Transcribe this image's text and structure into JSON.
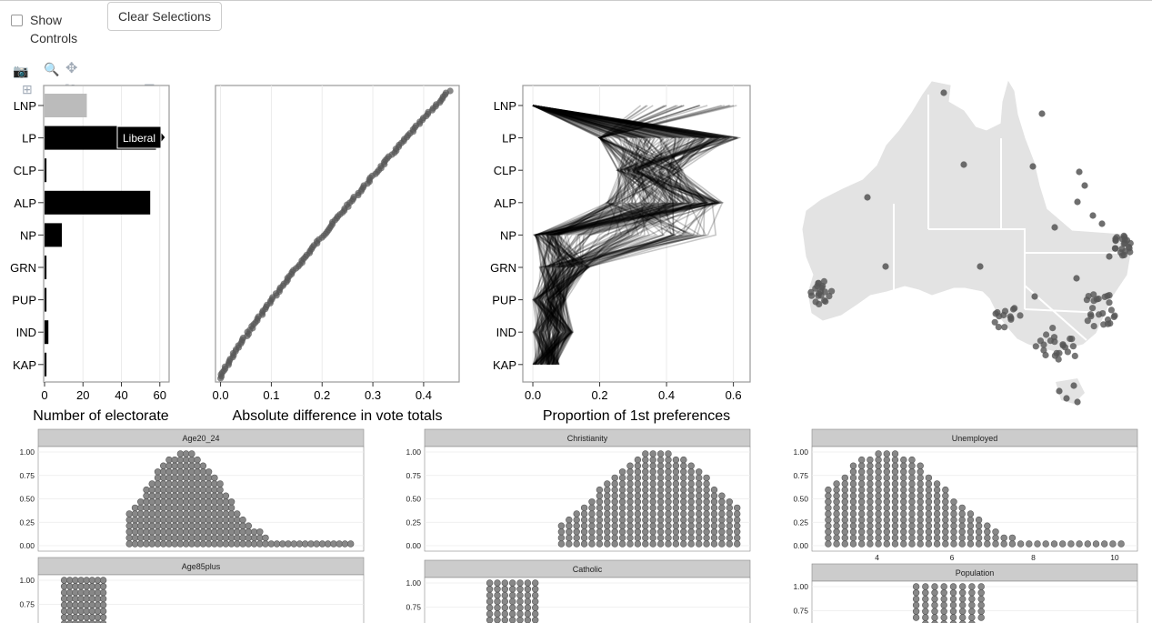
{
  "controls": {
    "show_controls_label": "Show Controls",
    "clear_button_label": "Clear Selections"
  },
  "modebar": {
    "icons": [
      "camera-icon",
      "zoom-icon",
      "pan-icon",
      "zoom-in-icon",
      "zoom-out-icon",
      "autoscale-icon",
      "home-icon",
      "hover-closest-icon",
      "hover-compare-icon"
    ]
  },
  "colors": {
    "point": "#555555",
    "bar": "#000000",
    "map_fill": "#e3e3e3",
    "strip": "#cccccc"
  },
  "parties": [
    "LNP",
    "LP",
    "CLP",
    "ALP",
    "NP",
    "GRN",
    "PUP",
    "IND",
    "KAP"
  ],
  "hover_label": "Liberal",
  "chart_data": [
    {
      "type": "bar",
      "orientation": "horizontal",
      "categories": [
        "LNP",
        "LP",
        "CLP",
        "ALP",
        "NP",
        "GRN",
        "PUP",
        "IND",
        "KAP"
      ],
      "values": [
        22,
        58,
        1,
        55,
        9,
        1,
        1,
        2,
        1
      ],
      "xlabel": "Number of electorate",
      "xticks": [
        "0",
        "20",
        "40",
        "60"
      ],
      "xlim": [
        0,
        62
      ]
    },
    {
      "type": "scatter",
      "xlabel": "Absolute difference in vote totals",
      "xticks": [
        "0.0",
        "0.1",
        "0.2",
        "0.3",
        "0.4"
      ],
      "xlim": [
        -0.01,
        0.47
      ],
      "points_n": 150,
      "x_max": 0.45
    },
    {
      "type": "line",
      "xlabel": "Proportion of 1st preferences",
      "xticks": [
        "0.0",
        "0.2",
        "0.4",
        "0.6"
      ],
      "xlim": [
        -0.03,
        0.65
      ],
      "categories": [
        "LNP",
        "LP",
        "CLP",
        "ALP",
        "NP",
        "GRN",
        "PUP",
        "IND",
        "KAP"
      ]
    },
    {
      "type": "scatter",
      "subtype": "map",
      "region": "Australia"
    },
    {
      "type": "scatter",
      "subtype": "dotplot",
      "facets": [
        {
          "title": "Age20_24",
          "yticks": [
            "1.00",
            "0.75",
            "0.50",
            "0.25",
            "0.00"
          ],
          "xticks": []
        },
        {
          "title": "Christianity",
          "yticks": [
            "1.00",
            "0.75",
            "0.50",
            "0.25",
            "0.00"
          ],
          "xticks": []
        },
        {
          "title": "Unemployed",
          "yticks": [
            "1.00",
            "0.75",
            "0.50",
            "0.25",
            "0.00"
          ],
          "xticks": [
            "4",
            "6",
            "8",
            "10"
          ]
        },
        {
          "title": "Age85plus",
          "yticks": [
            "1.00",
            "0.75"
          ],
          "xticks": []
        },
        {
          "title": "Catholic",
          "yticks": [
            "1.00",
            "0.75"
          ],
          "xticks": []
        },
        {
          "title": "Population",
          "yticks": [
            "1.00",
            "0.75"
          ],
          "xticks": []
        }
      ]
    }
  ]
}
